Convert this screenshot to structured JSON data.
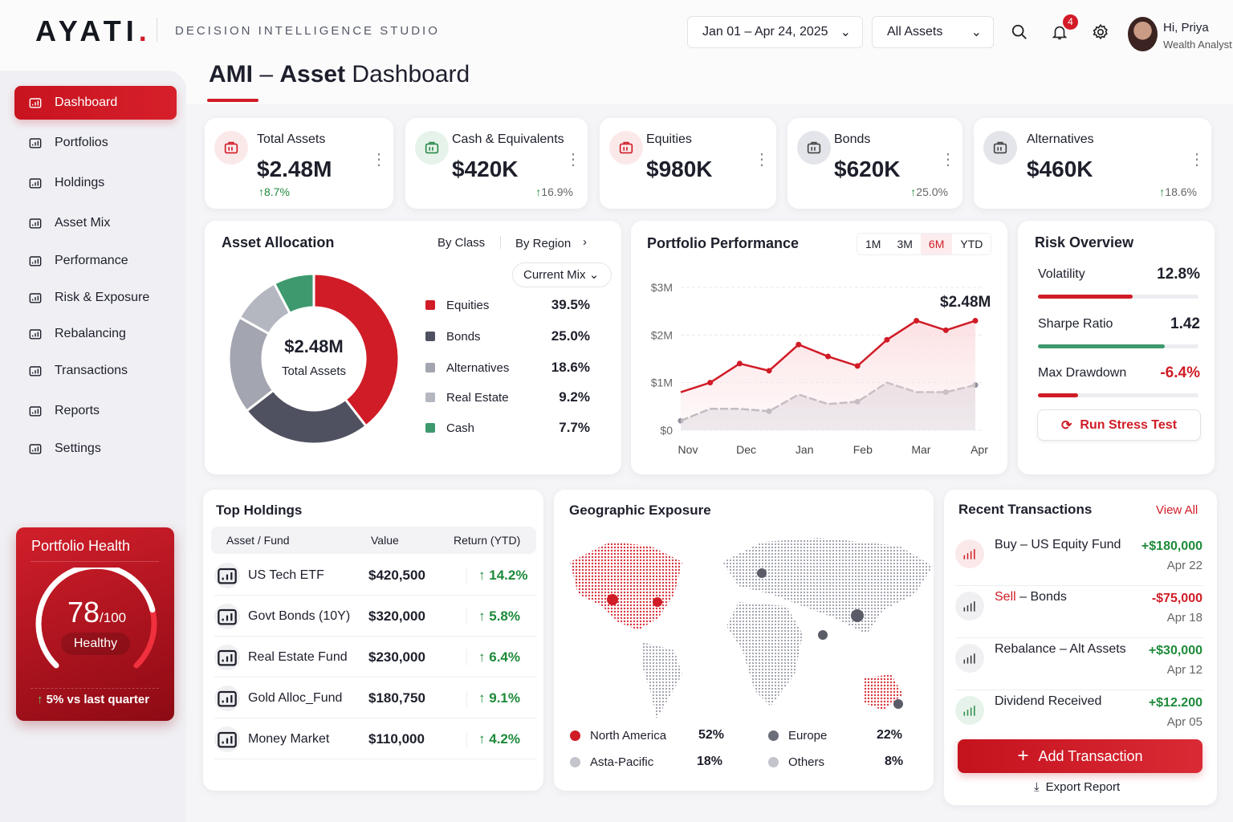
{
  "brand": {
    "logo": "AYATI",
    "subtitle": "DECISION INTELLIGENCE STUDIO"
  },
  "header": {
    "date_range": "Jan 01 – Apr 24, 2025",
    "asset_filter": "All Assets",
    "notifications": "4",
    "greeting": "Hi, Priya",
    "role": "Wealth Analyst"
  },
  "page": {
    "title_bold": "AMI",
    "title_sep": " – ",
    "title_mid": "Asset",
    "title_rest": " Dashboard"
  },
  "sidebar": {
    "items": [
      {
        "label": "Dashboard",
        "icon": "dashboard-icon",
        "active": true
      },
      {
        "label": "Portfolios",
        "icon": "portfolio-icon"
      },
      {
        "label": "Holdings",
        "icon": "holdings-icon"
      },
      {
        "label": "Asset Mix",
        "icon": "globe-icon"
      },
      {
        "label": "Performance",
        "icon": "bar-chart-icon"
      },
      {
        "label": "Risk & Exposure",
        "icon": "risk-icon"
      },
      {
        "label": "Rebalancing",
        "icon": "rebalance-icon"
      },
      {
        "label": "Transactions",
        "icon": "transactions-icon"
      },
      {
        "label": "Reports",
        "icon": "reports-icon"
      },
      {
        "label": "Settings",
        "icon": "gear-icon"
      }
    ]
  },
  "health": {
    "title": "Portfolio Health",
    "score": "78",
    "max": "/100",
    "score_value": 78,
    "status": "Healthy",
    "change": "5% vs last quarter"
  },
  "kpis": [
    {
      "label": "Total Assets",
      "value": "$2.48M",
      "change": "8.7%"
    },
    {
      "label": "Cash & Equivalents",
      "value": "$420K",
      "change": "16.9%"
    },
    {
      "label": "Equities",
      "value": "$980K",
      "change": ""
    },
    {
      "label": "Bonds",
      "value": "$620K",
      "change": "25.0%"
    },
    {
      "label": "Alternatives",
      "value": "$460K",
      "change": "18.6%"
    }
  ],
  "allocation": {
    "title": "Asset Allocation",
    "tab_class": "By Class",
    "tab_region": "By Region",
    "mix": "Current Mix",
    "center_value": "$2.48M",
    "center_label": "Total Assets"
  },
  "performance": {
    "title": "Portfolio Performance",
    "ranges": [
      "1M",
      "3M",
      "6M",
      "YTD"
    ],
    "active_range": "6M"
  },
  "chart_data": [
    {
      "type": "pie",
      "variant": "donut",
      "categories": [
        "Equities",
        "Bonds",
        "Alternatives",
        "Real Estate",
        "Cash"
      ],
      "values": [
        39.5,
        25.0,
        18.6,
        9.2,
        7.7
      ],
      "labels": [
        "39.5%",
        "25.0%",
        "18.6%",
        "9.2%",
        "7.7%"
      ],
      "colors": [
        "#d01c26",
        "#4f5160",
        "#a3a5b0",
        "#b4b6c0",
        "#3e9a6e"
      ],
      "legend": "right"
    },
    {
      "type": "area",
      "x_ticks": [
        "Nov",
        "Dec",
        "Jan",
        "Feb",
        "Mar",
        "Apr"
      ],
      "y_ticks": [
        "$0",
        "$1M",
        "$2M",
        "$3M"
      ],
      "ylim": [
        0,
        3
      ],
      "y_unit": "$M",
      "grid": true,
      "annotation": "$2.48M",
      "series": [
        {
          "color": "#d01c26",
          "values": [
            0.8,
            1.0,
            1.4,
            1.25,
            1.8,
            1.55,
            1.35,
            1.9,
            2.3,
            2.1,
            2.3
          ]
        },
        {
          "color": "#8e909c",
          "values": [
            0.2,
            0.45,
            0.45,
            0.4,
            0.75,
            0.55,
            0.6,
            1.0,
            0.8,
            0.8,
            0.95
          ]
        }
      ]
    }
  ],
  "risk": {
    "title": "Risk Overview",
    "metrics": [
      {
        "label": "Volatility",
        "value": "12.8%",
        "fill": 0.59,
        "color": "#d01c26"
      },
      {
        "label": "Sharpe Ratio",
        "value": "1.42",
        "fill": 0.79,
        "color": "#3e9a6e"
      },
      {
        "label": "Max Drawdown",
        "value": "-6.4%",
        "fill": 0.25,
        "color": "#d01c26"
      }
    ],
    "button": "Run Stress Test"
  },
  "holdings": {
    "title": "Top Holdings",
    "headers": [
      "Asset / Fund",
      "Value",
      "Return (YTD)"
    ],
    "rows": [
      {
        "name": "US Tech ETF",
        "value": "$420,500",
        "ret": "14.2%"
      },
      {
        "name": "Govt Bonds (10Y)",
        "value": "$320,000",
        "ret": "5.8%"
      },
      {
        "name": "Real Estate Fund",
        "value": "$230,000",
        "ret": "6.4%"
      },
      {
        "name": "Gold Alloc_Fund",
        "value": "$180,750",
        "ret": "9.1%"
      },
      {
        "name": "Money Market",
        "value": "$110,000",
        "ret": "4.2%"
      }
    ]
  },
  "geo": {
    "title": "Geographic Exposure",
    "legend": [
      {
        "label": "North America",
        "value": "52%",
        "color": "#d01c26"
      },
      {
        "label": "Europe",
        "value": "22%",
        "color": "#6b6d78"
      },
      {
        "label": "Asta-Pacific",
        "value": "18%",
        "color": "#c3c4cc"
      },
      {
        "label": "Others",
        "value": "8%",
        "color": "#c3c4cc"
      }
    ]
  },
  "transactions": {
    "title": "Recent Transactions",
    "view_all": "View All",
    "rows": [
      {
        "type": "",
        "name": "Buy – US Equity Fund",
        "amount": "+$180,000",
        "date": "Apr 22"
      },
      {
        "type": "Sell",
        "name": " – Bonds",
        "amount": "-$75,000",
        "date": "Apr 18"
      },
      {
        "type": "",
        "name": "Rebalance – Alt Assets",
        "amount": "+$30,000",
        "date": "Apr 12"
      },
      {
        "type": "",
        "name": "Dividend Received",
        "amount": "+$12.200",
        "date": "Apr 05"
      }
    ],
    "add_button": "Add Transaction",
    "export": "Export Report"
  }
}
